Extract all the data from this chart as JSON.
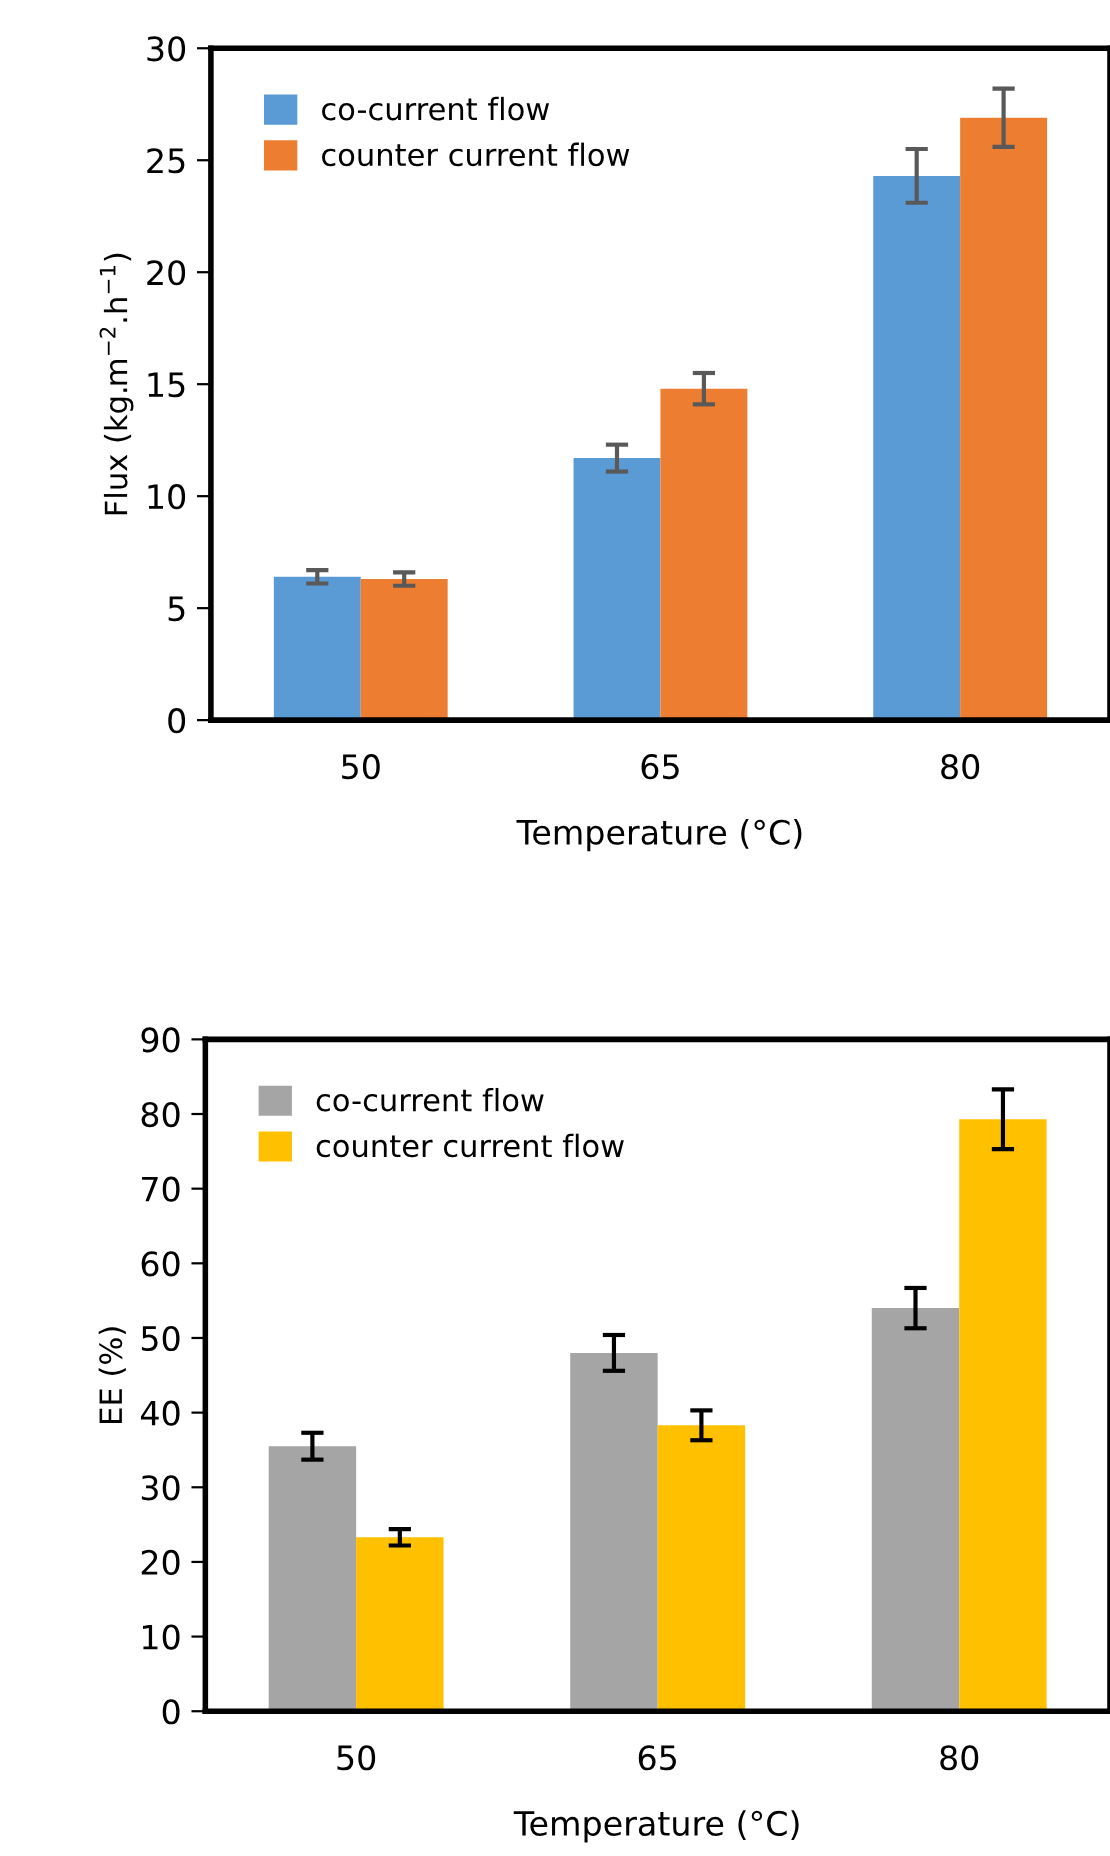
{
  "chart_data": [
    {
      "type": "bar",
      "categories": [
        "50",
        "65",
        "80"
      ],
      "xlabel": "Temperature (°C)",
      "ylabel": "Flux (kg.m$^{−2}$.h$^{−1}$)",
      "ylim": [
        0,
        30
      ],
      "yticks": [
        0,
        5,
        10,
        15,
        20,
        25,
        30
      ],
      "grid": false,
      "legend": "top left",
      "series": [
        {
          "name": "co-current flow",
          "color": "#5b9bd5",
          "values": [
            6.4,
            11.7,
            24.3
          ],
          "errors": [
            0.3,
            0.6,
            1.2
          ]
        },
        {
          "name": "counter current flow",
          "color": "#ed7d31",
          "values": [
            6.3,
            14.8,
            26.9
          ],
          "errors": [
            0.3,
            0.7,
            1.3
          ]
        }
      ]
    },
    {
      "type": "bar",
      "categories": [
        "50",
        "65",
        "80"
      ],
      "xlabel": "Temperature (°C)",
      "ylabel": "EE (%)",
      "ylim": [
        0,
        90
      ],
      "yticks": [
        0,
        10,
        20,
        30,
        40,
        50,
        60,
        70,
        80,
        90
      ],
      "grid": false,
      "legend": "top left",
      "series": [
        {
          "name": "co-current flow",
          "color": "#a5a5a5",
          "values": [
            35.5,
            48,
            54
          ],
          "errors": [
            1.8,
            2.4,
            2.7
          ]
        },
        {
          "name": "counter current flow",
          "color": "#ffc000",
          "values": [
            23.3,
            38.3,
            79.3
          ],
          "errors": [
            1.1,
            2.0,
            4.0
          ]
        }
      ]
    }
  ]
}
